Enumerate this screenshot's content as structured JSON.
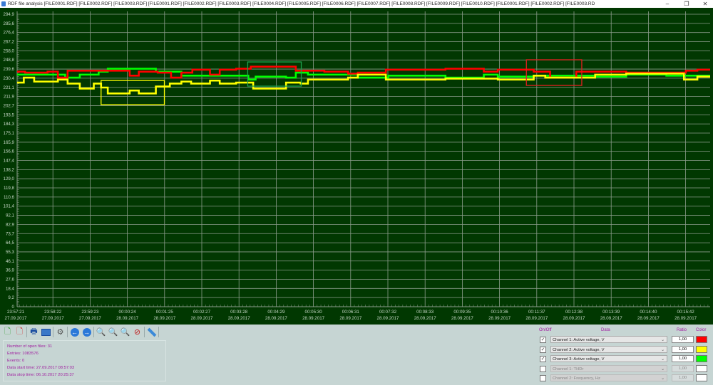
{
  "window": {
    "title": "RDF file analysis [FILE0001.RDF] [FILE0002.RDF] [FILE0003.RDF] [FILE0001.RDF] [FILE0002.RDF] [FILE0003.RDF] [FILE0004.RDF] [FILE0005.RDF] [FILE0006.RDF] [FILE0007.RDF] [FILE0008.RDF] [FILE0009.RDF] [FILE0010.RDF] [FILE0001.RDF] [FILE0002.RDF] [FILE0003.RD",
    "minimize": "–",
    "restore": "❐",
    "close": "✕"
  },
  "chart_data": {
    "type": "line",
    "title": "",
    "xlabel": "",
    "ylabel": "",
    "ylim": [
      0,
      294.9
    ],
    "xlim": [
      "23:57:21",
      "00:16:20"
    ],
    "grid": true,
    "background": "#013801",
    "y_ticks": [
      "294,9",
      "285,6",
      "276,4",
      "267,2",
      "258,0",
      "248,8",
      "239,6",
      "230,4",
      "221,1",
      "211,9",
      "202,7",
      "193,5",
      "184,3",
      "175,1",
      "165,9",
      "156,6",
      "147,4",
      "138,2",
      "129,0",
      "119,8",
      "110,6",
      "101,4",
      "92,1",
      "82,9",
      "73,7",
      "64,5",
      "55,3",
      "46,1",
      "36,9",
      "27,6",
      "18,4",
      "9,2",
      "0"
    ],
    "x_ticks": [
      {
        "time": "23:57:21",
        "date": "27.09.2017"
      },
      {
        "time": "23:58:22",
        "date": "27.09.2017"
      },
      {
        "time": "23:59:23",
        "date": "27.09.2017"
      },
      {
        "time": "00:00:24",
        "date": "28.09.2017"
      },
      {
        "time": "00:01:25",
        "date": "28.09.2017"
      },
      {
        "time": "00:02:27",
        "date": "28.09.2017"
      },
      {
        "time": "00:03:28",
        "date": "28.09.2017"
      },
      {
        "time": "00:04:29",
        "date": "28.09.2017"
      },
      {
        "time": "00:05:30",
        "date": "28.09.2017"
      },
      {
        "time": "00:06:31",
        "date": "28.09.2017"
      },
      {
        "time": "00:07:32",
        "date": "28.09.2017"
      },
      {
        "time": "00:08:33",
        "date": "28.09.2017"
      },
      {
        "time": "00:09:35",
        "date": "28.09.2017"
      },
      {
        "time": "00:10:36",
        "date": "28.09.2017"
      },
      {
        "time": "00:11:37",
        "date": "28.09.2017"
      },
      {
        "time": "00:12:38",
        "date": "28.09.2017"
      },
      {
        "time": "00:13:39",
        "date": "28.09.2017"
      },
      {
        "time": "00:14:40",
        "date": "28.09.2017"
      },
      {
        "time": "00:15:42",
        "date": "28.09.2017"
      }
    ],
    "series": [
      {
        "name": "Channel 1: Active voltage, V",
        "color": "#ff0000",
        "points": [
          [
            "23:57:21",
            237
          ],
          [
            "23:57:34",
            236
          ],
          [
            "23:58:11",
            237
          ],
          [
            "23:58:28",
            231
          ],
          [
            "23:58:44",
            238
          ],
          [
            "00:00:26",
            233
          ],
          [
            "00:00:41",
            237
          ],
          [
            "00:01:12",
            236
          ],
          [
            "00:01:34",
            231
          ],
          [
            "00:01:51",
            236
          ],
          [
            "00:02:09",
            239
          ],
          [
            "00:02:38",
            234
          ],
          [
            "00:02:54",
            239
          ],
          [
            "00:03:21",
            240
          ],
          [
            "00:03:45",
            242
          ],
          [
            "00:04:59",
            238
          ],
          [
            "00:05:46",
            237
          ],
          [
            "00:06:25",
            235
          ],
          [
            "00:06:41",
            236
          ],
          [
            "00:07:27",
            239
          ],
          [
            "00:09:05",
            240
          ],
          [
            "00:10:08",
            237
          ],
          [
            "00:10:31",
            239
          ],
          [
            "00:11:30",
            237
          ],
          [
            "00:11:57",
            231
          ],
          [
            "00:12:40",
            237
          ],
          [
            "00:14:02",
            236
          ],
          [
            "00:15:40",
            238
          ],
          [
            "00:15:59",
            239
          ],
          [
            "00:16:20",
            239
          ]
        ]
      },
      {
        "name": "Channel 2: Active voltage, V",
        "color": "#ffff00",
        "points": [
          [
            "23:57:21",
            226
          ],
          [
            "23:57:32",
            231
          ],
          [
            "23:57:49",
            227
          ],
          [
            "23:58:28",
            229
          ],
          [
            "23:58:44",
            225
          ],
          [
            "23:59:04",
            220
          ],
          [
            "23:59:27",
            225
          ],
          [
            "23:59:39",
            221
          ],
          [
            "23:59:50",
            215
          ],
          [
            "00:00:26",
            218
          ],
          [
            "00:00:41",
            215
          ],
          [
            "00:01:09",
            222
          ],
          [
            "00:01:32",
            225
          ],
          [
            "00:01:51",
            227
          ],
          [
            "00:02:07",
            225
          ],
          [
            "00:02:38",
            228
          ],
          [
            "00:02:54",
            225
          ],
          [
            "00:03:21",
            226
          ],
          [
            "00:03:49",
            220
          ],
          [
            "00:04:43",
            226
          ],
          [
            "00:05:07",
            225
          ],
          [
            "00:05:19",
            229
          ],
          [
            "00:06:25",
            231
          ],
          [
            "00:06:41",
            234
          ],
          [
            "00:07:27",
            229
          ],
          [
            "00:09:05",
            230
          ],
          [
            "00:10:31",
            229
          ],
          [
            "00:11:30",
            233
          ],
          [
            "00:11:49",
            231
          ],
          [
            "00:13:11",
            234
          ],
          [
            "00:14:02",
            235
          ],
          [
            "00:15:37",
            229
          ],
          [
            "00:15:59",
            232
          ],
          [
            "00:16:20",
            232
          ]
        ]
      },
      {
        "name": "Channel 3: Active voltage, V",
        "color": "#00ff00",
        "points": [
          [
            "23:57:21",
            234
          ],
          [
            "23:58:40",
            231
          ],
          [
            "23:59:04",
            234
          ],
          [
            "23:59:35",
            237
          ],
          [
            "23:59:50",
            240
          ],
          [
            "00:01:09",
            237
          ],
          [
            "00:01:51",
            233
          ],
          [
            "00:03:41",
            229
          ],
          [
            "00:03:53",
            232
          ],
          [
            "00:04:43",
            231
          ],
          [
            "00:04:59",
            236
          ],
          [
            "00:05:19",
            234
          ],
          [
            "00:06:41",
            231
          ],
          [
            "00:07:31",
            233
          ],
          [
            "00:09:05",
            231
          ],
          [
            "00:10:08",
            234
          ],
          [
            "00:10:31",
            232
          ],
          [
            "00:11:30",
            233
          ],
          [
            "00:13:11",
            232
          ],
          [
            "00:14:02",
            234
          ],
          [
            "00:15:08",
            233
          ],
          [
            "00:16:20",
            233
          ]
        ]
      }
    ],
    "annotations": [
      {
        "color": "#ffff00",
        "x": [
          "23:59:39",
          "00:01:23"
        ],
        "y": [
          203.7,
          228.1
        ]
      },
      {
        "color": "#1fa050",
        "x": [
          "00:03:40",
          "00:05:08"
        ],
        "y": [
          222.4,
          246.8
        ]
      },
      {
        "color": "#e02020",
        "x": [
          "00:11:18",
          "00:12:49"
        ],
        "y": [
          223.1,
          249.0
        ]
      }
    ]
  },
  "toolbar": {
    "icons": [
      "add-file-icon",
      "remove-file-icon",
      "print-icon",
      "export-image-icon",
      "settings-gear-icon",
      "back-arrow-icon",
      "forward-arrow-icon",
      "zoom-in-icon",
      "zoom-out-icon",
      "zoom-area-icon",
      "zoom-reset-icon",
      "ruler-icon"
    ]
  },
  "info": {
    "open_files": "Number of open files: 31",
    "entries": "Entries: 1083576",
    "events": "Events: 0",
    "start": "Data start time: 27.09.2017 08:57:03",
    "stop": "Data stop time: 06.10.2017 20:25:37"
  },
  "channels": {
    "headers": {
      "onoff": "On/Off",
      "data": "Data",
      "ratio": "Ratio",
      "color": "Color"
    },
    "rows": [
      {
        "checked": true,
        "data": "Channel 1: Active voltage, V",
        "ratio": "1,00",
        "color": "#ff0000",
        "enabled": true
      },
      {
        "checked": true,
        "data": "Channel 2: Active voltage, V",
        "ratio": "1,00",
        "color": "#ffff00",
        "enabled": true
      },
      {
        "checked": true,
        "data": "Channel 3: Active voltage, V",
        "ratio": "1,00",
        "color": "#00ff00",
        "enabled": true
      },
      {
        "checked": false,
        "data": "Channel 1: THDr",
        "ratio": "1,00",
        "color": "#ffffff",
        "enabled": false
      },
      {
        "checked": false,
        "data": "Channel 2: Frequency, Hz",
        "ratio": "1,00",
        "color": "#ffffff",
        "enabled": false
      }
    ]
  }
}
